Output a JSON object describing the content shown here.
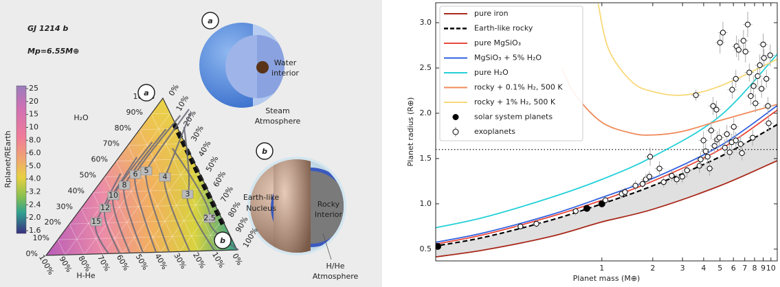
{
  "chart_data": [
    {
      "type": "ternary",
      "title": "GJ 1214 b",
      "subtitle": "Mp=6.55M⊕",
      "h2o_label": "H₂O",
      "hhe_label": "H-He",
      "nucleus_label": [
        "Earth-like",
        "Nucleus"
      ],
      "ticks": [
        {
          "value": 0,
          "label": "0%"
        },
        {
          "value": 10,
          "label": "10%"
        },
        {
          "value": 20,
          "label": "20%"
        },
        {
          "value": 30,
          "label": "30%"
        },
        {
          "value": 40,
          "label": "40%"
        },
        {
          "value": 50,
          "label": "50%"
        },
        {
          "value": 60,
          "label": "60%"
        },
        {
          "value": 70,
          "label": "70%"
        },
        {
          "value": 80,
          "label": "80%"
        },
        {
          "value": 90,
          "label": "90%"
        },
        {
          "value": 100,
          "label": "100%"
        }
      ],
      "colorbar": {
        "label": "Rplanet/REarth",
        "ticks": [
          25,
          20,
          15,
          10,
          {
            "value": 8,
            "label": "8.0"
          },
          {
            "value": 6,
            "label": "6.0"
          },
          {
            "value": 5,
            "label": "5.0"
          },
          {
            "value": 4,
            "label": "4.0"
          },
          3.2,
          2.4,
          {
            "value": 2,
            "label": "2.0"
          },
          1.6
        ]
      },
      "contour_labels": [
        15,
        12,
        10,
        8,
        6,
        5,
        4,
        3,
        2.5
      ],
      "corners": [
        "a",
        "b"
      ],
      "insets": [
        {
          "texts": [
            [
              "Water",
              "interior"
            ],
            [
              "Steam",
              "Atmosphere"
            ]
          ]
        },
        {
          "texts": [
            [
              "Rocky",
              "Interior"
            ],
            [
              "H/He",
              "Atmosphere"
            ]
          ]
        }
      ]
    },
    {
      "type": "line",
      "xlabel": "Planet mass (M⊕)",
      "ylabel": "Planet radius (R⊕)",
      "xscale": "log",
      "xlim": [
        0.104,
        10.9
      ],
      "ylim": [
        0.37,
        3.22
      ],
      "xticks": [
        1,
        2,
        3,
        4,
        5,
        6,
        7,
        8,
        9,
        10
      ],
      "yticks": [
        0.5,
        {
          "value": 1,
          "label": "1.0"
        },
        1.5,
        {
          "value": 2,
          "label": "2.0"
        },
        2.5,
        {
          "value": 3,
          "label": "3.0"
        }
      ],
      "hline": 1.6,
      "legend": "upper left",
      "series": [
        {
          "name": "pure iron",
          "color": "#a8281a",
          "x": [
            0.1,
            0.2,
            0.5,
            1,
            2,
            5,
            11
          ],
          "values": [
            0.41,
            0.49,
            0.64,
            0.8,
            0.94,
            1.2,
            1.48
          ]
        },
        {
          "name": "Earth-like rocky",
          "color": "#000000",
          "dash": true,
          "x": [
            0.1,
            0.2,
            0.5,
            1,
            2,
            5,
            11
          ],
          "values": [
            0.53,
            0.63,
            0.82,
            1.0,
            1.2,
            1.52,
            1.88
          ]
        },
        {
          "name": "pure MgSiO₃",
          "color": "#e8483a",
          "x": [
            0.1,
            0.2,
            0.5,
            1,
            2,
            5,
            11
          ],
          "values": [
            0.55,
            0.66,
            0.86,
            1.04,
            1.25,
            1.6,
            2.04
          ]
        },
        {
          "name": "MgSiO₃ + 5% H₂O",
          "color": "#2f5fe0",
          "x": [
            0.1,
            0.2,
            0.5,
            1,
            2,
            5,
            11
          ],
          "values": [
            0.57,
            0.68,
            0.88,
            1.07,
            1.28,
            1.64,
            2.09
          ]
        },
        {
          "name": "pure H₂O",
          "color": "#22d0d8",
          "x": [
            0.1,
            0.2,
            0.5,
            1,
            2,
            5,
            11
          ],
          "values": [
            0.73,
            0.85,
            1.07,
            1.27,
            1.52,
            1.97,
            2.66
          ]
        },
        {
          "name": "rocky + 0.1% H₂, 500 K",
          "color": "#f08a5a",
          "x": [
            0.58,
            0.7,
            1,
            1.5,
            2,
            3,
            5,
            11
          ],
          "values": [
            2.49,
            2.2,
            1.9,
            1.78,
            1.76,
            1.8,
            1.92,
            2.1
          ]
        },
        {
          "name": "rocky + 1% H₂, 500 K",
          "color": "#f8d878",
          "x": [
            0.95,
            1.1,
            1.5,
            2,
            3,
            5,
            11
          ],
          "values": [
            3.21,
            2.7,
            2.35,
            2.24,
            2.2,
            2.3,
            2.6
          ]
        },
        {
          "name": "solar system planets",
          "type": "scatter",
          "marker": "filled",
          "color": "#000000",
          "x": [
            0.107,
            0.815,
            1
          ],
          "values": [
            0.53,
            0.95,
            1.0
          ]
        },
        {
          "name": "exoplanets",
          "type": "scatter",
          "marker": "open",
          "color": "#000000",
          "x": [
            0.33,
            0.41,
            0.7,
            1.05,
            1.31,
            1.37,
            1.58,
            1.74,
            1.82,
            1.91,
            1.93,
            2.19,
            2.32,
            2.59,
            2.77,
            2.99,
            3.19,
            3.6,
            3.78,
            3.84,
            3.99,
            4.11,
            4.22,
            4.34,
            4.43,
            4.55,
            4.64,
            4.76,
            4.81,
            4.95,
            5.0,
            5.2,
            5.34,
            5.49,
            5.7,
            5.86,
            6.03,
            6.2,
            6.26,
            6.44,
            6.62,
            6.74,
            6.88,
            7.07,
            7.29,
            7.45,
            7.6,
            7.8,
            7.9,
            8.1,
            8.35,
            8.6,
            8.8,
            9.0,
            9.1,
            9.4,
            9.6,
            9.7,
            9.9,
            6.2,
            5.9
          ],
          "values": [
            0.75,
            0.78,
            0.92,
            1.04,
            1.11,
            1.13,
            1.2,
            1.22,
            1.27,
            1.3,
            1.52,
            1.39,
            1.24,
            1.31,
            1.27,
            1.3,
            1.37,
            2.2,
            1.42,
            1.49,
            1.7,
            1.58,
            1.52,
            1.39,
            1.81,
            2.08,
            1.64,
            2.04,
            1.71,
            1.73,
            2.78,
            2.89,
            1.62,
            1.77,
            1.57,
            1.68,
            1.85,
            1.7,
            2.74,
            2.7,
            1.66,
            1.56,
            2.8,
            2.68,
            2.98,
            2.45,
            2.19,
            1.73,
            2.3,
            2.11,
            2.41,
            2.53,
            2.27,
            2.76,
            2.61,
            2.38,
            2.08,
            1.89,
            2.64,
            2.38,
            2.26
          ],
          "yerr": [
            0.03,
            0.04,
            0.05,
            0.04,
            0.05,
            0.05,
            0.06,
            0.05,
            0.06,
            0.06,
            0.1,
            0.08,
            0.06,
            0.06,
            0.06,
            0.07,
            0.08,
            0.06,
            0.08,
            0.08,
            0.1,
            0.09,
            0.08,
            0.08,
            0.1,
            0.1,
            0.09,
            0.1,
            0.09,
            0.1,
            0.12,
            0.12,
            0.09,
            0.1,
            0.08,
            0.09,
            0.1,
            0.09,
            0.12,
            0.12,
            0.09,
            0.08,
            0.12,
            0.12,
            0.14,
            0.1,
            0.1,
            0.09,
            0.1,
            0.1,
            0.1,
            0.12,
            0.1,
            0.12,
            0.1,
            0.1,
            0.1,
            0.09,
            0.12,
            0.1,
            0.1
          ]
        }
      ]
    }
  ]
}
